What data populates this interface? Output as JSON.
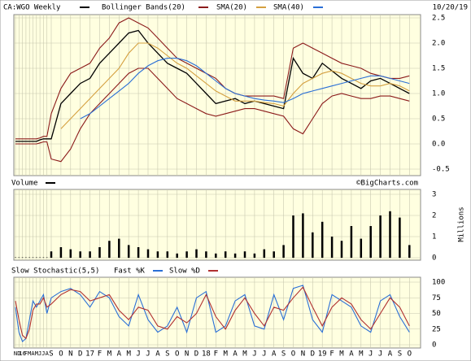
{
  "chart_data": [
    {
      "type": "price",
      "date": "10/20/19",
      "ylim": [
        -0.5,
        2.5
      ],
      "yticks": [
        2.5,
        {
          "value": 2,
          "label": "2.0"
        },
        1.5,
        {
          "value": 1,
          "label": "1.0"
        },
        0.5,
        {
          "value": 0,
          "label": "0.0"
        },
        -0.5
      ],
      "series": [
        {
          "name": "CA:WGO Weekly",
          "color": "#000000",
          "values": [
            0.05,
            0.05,
            0.05,
            0.05,
            0.05,
            0.05,
            0.05,
            0.08,
            0.1,
            0.1,
            0.1,
            0.8,
            1.0,
            1.2,
            1.3,
            1.6,
            1.8,
            2.0,
            2.2,
            2.25,
            2.0,
            1.8,
            1.6,
            1.5,
            1.4,
            1.2,
            1.0,
            0.8,
            0.85,
            0.9,
            0.8,
            0.85,
            0.8,
            0.75,
            0.7,
            1.7,
            1.4,
            1.3,
            1.6,
            1.45,
            1.3,
            1.2,
            1.1,
            1.25,
            1.3,
            1.2,
            1.1,
            1.0
          ]
        },
        {
          "name": "Bollinger Bands(20)",
          "color": "#8b1a1a",
          "upper": [
            0.1,
            0.1,
            0.1,
            0.1,
            0.1,
            0.1,
            0.1,
            0.12,
            0.15,
            0.15,
            0.6,
            1.1,
            1.4,
            1.5,
            1.6,
            1.9,
            2.1,
            2.4,
            2.5,
            2.4,
            2.3,
            2.1,
            1.9,
            1.7,
            1.6,
            1.5,
            1.4,
            1.3,
            1.1,
            1.0,
            0.95,
            0.95,
            0.95,
            0.95,
            0.9,
            1.9,
            2.0,
            1.9,
            1.8,
            1.7,
            1.6,
            1.55,
            1.5,
            1.4,
            1.35,
            1.3,
            1.3,
            1.35
          ],
          "lower": [
            0.0,
            0.0,
            0.0,
            0.0,
            0.0,
            0.0,
            0.0,
            0.02,
            0.04,
            0.04,
            -0.3,
            -0.35,
            -0.1,
            0.3,
            0.6,
            0.8,
            1.0,
            1.2,
            1.4,
            1.5,
            1.5,
            1.3,
            1.1,
            0.9,
            0.8,
            0.7,
            0.6,
            0.55,
            0.6,
            0.65,
            0.7,
            0.7,
            0.65,
            0.6,
            0.55,
            0.3,
            0.2,
            0.5,
            0.8,
            0.95,
            1.0,
            0.95,
            0.9,
            0.9,
            0.95,
            0.95,
            0.9,
            0.85
          ]
        },
        {
          "name": "SMA(20)",
          "color": "#d4a040",
          "values": [
            null,
            null,
            null,
            null,
            null,
            null,
            null,
            null,
            null,
            null,
            null,
            0.3,
            0.5,
            0.7,
            0.9,
            1.1,
            1.3,
            1.5,
            1.8,
            2.0,
            2.0,
            1.9,
            1.75,
            1.6,
            1.5,
            1.35,
            1.2,
            1.05,
            0.95,
            0.85,
            0.85,
            0.85,
            0.82,
            0.8,
            0.75,
            1.0,
            1.2,
            1.3,
            1.4,
            1.45,
            1.4,
            1.3,
            1.2,
            1.15,
            1.15,
            1.2,
            1.15,
            1.05
          ]
        },
        {
          "name": "SMA(40)",
          "color": "#2a6fd6",
          "values": [
            null,
            null,
            null,
            null,
            null,
            null,
            null,
            null,
            null,
            null,
            null,
            null,
            null,
            0.5,
            0.6,
            0.75,
            0.9,
            1.05,
            1.2,
            1.4,
            1.55,
            1.65,
            1.7,
            1.7,
            1.65,
            1.55,
            1.4,
            1.25,
            1.1,
            1.0,
            0.95,
            0.9,
            0.87,
            0.85,
            0.82,
            0.9,
            1.0,
            1.05,
            1.1,
            1.15,
            1.2,
            1.25,
            1.3,
            1.35,
            1.35,
            1.3,
            1.25,
            1.2
          ]
        }
      ]
    },
    {
      "type": "bar",
      "title": "Volume",
      "credit": "©BigCharts.com",
      "ylabel": "Millions",
      "ylim": [
        0,
        3
      ],
      "yticks": [
        0,
        1,
        2,
        3
      ],
      "color": "#000000",
      "values": [
        0.02,
        0.02,
        0.02,
        0.02,
        0.02,
        0.02,
        0.02,
        0.02,
        0.02,
        0.02,
        0.3,
        0.5,
        0.4,
        0.3,
        0.3,
        0.5,
        0.8,
        0.9,
        0.6,
        0.5,
        0.4,
        0.3,
        0.3,
        0.2,
        0.3,
        0.4,
        0.3,
        0.2,
        0.3,
        0.2,
        0.3,
        0.2,
        0.4,
        0.3,
        0.6,
        2.0,
        2.1,
        1.2,
        1.7,
        1.0,
        0.8,
        1.5,
        0.9,
        1.5,
        2.0,
        2.2,
        1.9,
        0.6
      ]
    },
    {
      "type": "line",
      "title": "Slow Stochastic(5,5)",
      "ylim": [
        0,
        100
      ],
      "yticks": [
        0,
        25,
        50,
        75,
        100
      ],
      "categories": [
        "N",
        "D",
        "16",
        "F",
        "M",
        "A",
        "M",
        "J",
        "J",
        "A",
        "S",
        "O",
        "N",
        "D",
        "17",
        "F",
        "M",
        "A",
        "M",
        "J",
        "J",
        "A",
        "S",
        "O",
        "N",
        "D",
        "18",
        "F",
        "M",
        "A",
        "M",
        "J",
        "J",
        "A",
        "S",
        "O",
        "N",
        "D",
        "19",
        "F",
        "M",
        "A",
        "M",
        "J",
        "J",
        "A",
        "S",
        "O"
      ],
      "series": [
        {
          "name": "Fast %K",
          "color": "#2a6fd6",
          "values": [
            60,
            20,
            5,
            10,
            40,
            70,
            60,
            70,
            80,
            50,
            75,
            85,
            90,
            80,
            60,
            85,
            75,
            45,
            30,
            80,
            40,
            20,
            30,
            60,
            20,
            75,
            85,
            20,
            30,
            70,
            80,
            30,
            25,
            80,
            40,
            90,
            95,
            40,
            20,
            80,
            70,
            60,
            30,
            20,
            70,
            80,
            45,
            20
          ]
        },
        {
          "name": "Slow %D",
          "color": "#b03030",
          "values": [
            70,
            40,
            15,
            10,
            25,
            55,
            65,
            65,
            75,
            60,
            65,
            80,
            88,
            85,
            70,
            75,
            80,
            55,
            40,
            60,
            55,
            30,
            25,
            45,
            35,
            50,
            80,
            45,
            25,
            55,
            75,
            50,
            30,
            60,
            55,
            75,
            92,
            60,
            30,
            60,
            75,
            65,
            40,
            25,
            50,
            75,
            60,
            30
          ]
        }
      ]
    }
  ]
}
